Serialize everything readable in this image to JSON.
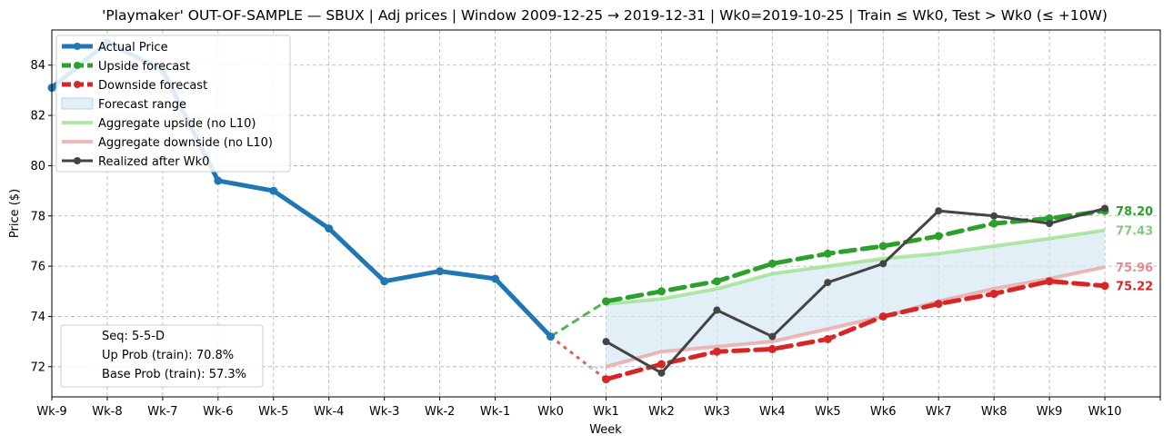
{
  "chart_data": {
    "type": "line",
    "title": "'Playmaker' OUT-OF-SAMPLE — SBUX  |  Adj prices  |  Window 2009-12-25 → 2019-12-31  |  Wk0=2019-10-25  |  Train ≤ Wk0, Test > Wk0 (≤ +10W)",
    "xlabel": "Week",
    "ylabel": "Price ($)",
    "categories": [
      "Wk-9",
      "Wk-8",
      "Wk-7",
      "Wk-6",
      "Wk-5",
      "Wk-4",
      "Wk-3",
      "Wk-2",
      "Wk-1",
      "Wk0",
      "Wk1",
      "Wk2",
      "Wk3",
      "Wk4",
      "Wk5",
      "Wk6",
      "Wk7",
      "Wk8",
      "Wk9",
      "Wk10"
    ],
    "yticks": [
      72,
      74,
      76,
      78,
      80,
      82,
      84
    ],
    "ylim": [
      70.8,
      85.4
    ],
    "grid": true,
    "legend_position": "top-left",
    "series": [
      {
        "name": "Actual Price",
        "color": "#1f77b4",
        "x": [
          -9,
          -8,
          -7,
          -6,
          -5,
          -4,
          -3,
          -2,
          -1,
          0
        ],
        "values": [
          83.1,
          84.9,
          83.8,
          79.4,
          79.0,
          77.5,
          75.4,
          75.8,
          75.5,
          73.2
        ]
      },
      {
        "name": "Upside forecast",
        "color": "#2ca02c",
        "x": [
          1,
          2,
          3,
          4,
          5,
          6,
          7,
          8,
          9,
          10
        ],
        "values": [
          74.6,
          75.0,
          75.4,
          76.1,
          76.5,
          76.8,
          77.2,
          77.7,
          77.9,
          78.2
        ]
      },
      {
        "name": "Downside forecast",
        "color": "#d62728",
        "x": [
          1,
          2,
          3,
          4,
          5,
          6,
          7,
          8,
          9,
          10
        ],
        "values": [
          71.5,
          72.1,
          72.6,
          72.7,
          73.1,
          74.0,
          74.5,
          74.9,
          75.4,
          75.22
        ]
      },
      {
        "name": "Forecast range",
        "color": "#d7e8f3"
      },
      {
        "name": "Aggregate upside (no L10)",
        "color": "#98df8a",
        "x": [
          1,
          2,
          3,
          4,
          5,
          6,
          7,
          8,
          9,
          10
        ],
        "values": [
          74.5,
          74.7,
          75.1,
          75.7,
          76.0,
          76.3,
          76.5,
          76.8,
          77.1,
          77.43
        ]
      },
      {
        "name": "Aggregate downside (no L10)",
        "color": "#e8a0a0",
        "x": [
          1,
          2,
          3,
          4,
          5,
          6,
          7,
          8,
          9,
          10
        ],
        "values": [
          72.0,
          72.6,
          72.8,
          73.0,
          73.5,
          74.0,
          74.6,
          75.1,
          75.5,
          75.96
        ]
      },
      {
        "name": "Realized after Wk0",
        "color": "#444444",
        "x": [
          1,
          2,
          3,
          4,
          5,
          6,
          7,
          8,
          9,
          10
        ],
        "values": [
          73.0,
          71.75,
          74.25,
          73.2,
          75.35,
          76.1,
          78.2,
          78.0,
          77.7,
          78.3
        ]
      }
    ],
    "end_labels": [
      {
        "text": "78.20",
        "value": 78.2,
        "color": "#2ca02c"
      },
      {
        "text": "77.43",
        "value": 77.43,
        "color": "#7fcc77"
      },
      {
        "text": "75.96",
        "value": 75.96,
        "color": "#e88a8a"
      },
      {
        "text": "75.22",
        "value": 75.22,
        "color": "#d62728"
      }
    ],
    "info_box": [
      "Seq: 5-5-D",
      "Up Prob (train): 70.8%",
      "Base Prob (train): 57.3%"
    ]
  }
}
